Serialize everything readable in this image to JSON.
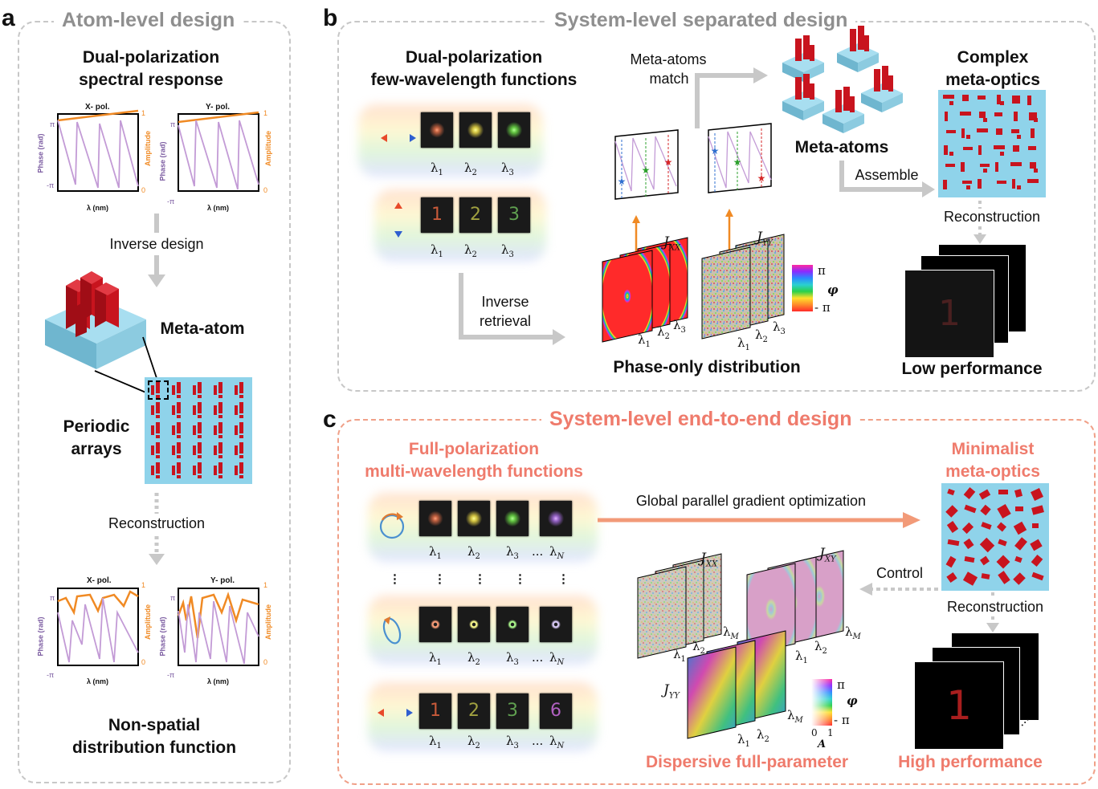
{
  "panels": {
    "a": {
      "letter": "a",
      "title": "Atom-level design"
    },
    "b": {
      "letter": "b",
      "title": "System-level separated design"
    },
    "c": {
      "letter": "c",
      "title": "System-level end-to-end design"
    }
  },
  "panel_a": {
    "heading_top": [
      "Dual-polarization",
      "spectral response"
    ],
    "plot_x_title": "X- pol.",
    "plot_y_title": "Y- pol.",
    "axis_phase": "Phase (rad)",
    "axis_amp": "Amplitude",
    "axis_x": "λ (nm)",
    "tick_pi": "π",
    "tick_negpi": "-π",
    "tick_1": "1",
    "tick_0": "0",
    "inverse_design": "Inverse design",
    "meta_atom": "Meta-atom",
    "periodic": [
      "Periodic",
      "arrays"
    ],
    "reconstruction": "Reconstruction",
    "heading_bottom": [
      "Non-spatial",
      "distribution function"
    ]
  },
  "panel_b": {
    "heading_left": [
      "Dual-polarization",
      "few-wavelength functions"
    ],
    "meta_atoms_match": [
      "Meta-atoms",
      "match"
    ],
    "meta_atoms": "Meta-atoms",
    "complex": [
      "Complex",
      "meta-optics"
    ],
    "assemble": "Assemble",
    "reconstruction": "Reconstruction",
    "inverse_retrieval": [
      "Inverse",
      "retrieval"
    ],
    "phase_only": "Phase-only distribution",
    "low_perf": "Low performance",
    "jxx": "J",
    "jxx_sub": "XX",
    "jyy_sub": "YY",
    "phi": "φ",
    "pi": "π",
    "negpi": "- π",
    "digits": [
      "1",
      "2",
      "3"
    ],
    "recon_digit": "1"
  },
  "panel_c": {
    "heading_left": [
      "Full-polarization",
      "multi-wavelength functions"
    ],
    "global": "Global parallel gradient optimization",
    "minimalist": [
      "Minimalist",
      "meta-optics"
    ],
    "control": "Control",
    "reconstruction": "Reconstruction",
    "dispersive": "Dispersive full-parameter",
    "high_perf": "High performance",
    "jxy_sub": "XY",
    "digits": [
      "1",
      "2",
      "3",
      "6"
    ],
    "recon_digit": "1",
    "amp_label": "A",
    "amp_0": "0",
    "amp_1": "1",
    "dots": "⋮",
    "ellipsis": "..."
  },
  "colors": {
    "salmon": "#ef7b6c",
    "gray_title": "#8f8f8f",
    "meta_red": "#c8141e",
    "substrate": "#8fd3ea",
    "amp_orange": "#f08a24",
    "phase_purple": "#c39bd6"
  }
}
